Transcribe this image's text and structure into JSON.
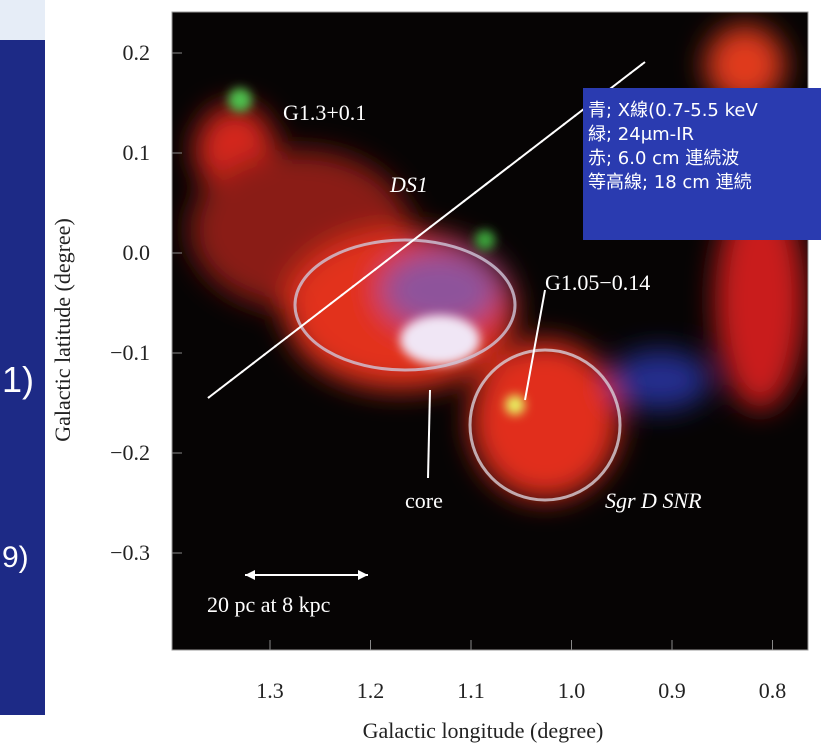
{
  "figure": {
    "y_axis_label": "Galactic latitude (degree)",
    "x_axis_label": "Galactic longitude (degree)",
    "y_tick_labels": [
      "0.2",
      "0.1",
      "0.0",
      "−0.1",
      "−0.2",
      "−0.3"
    ],
    "x_tick_labels": [
      "1.3",
      "1.2",
      "1.1",
      "1.0",
      "0.9",
      "0.8"
    ],
    "annotations": [
      "G1.3+0.1",
      "DS1",
      "G1.05−0.14",
      "core",
      "Sgr D SNR"
    ],
    "scale_bar": "20 pc at 8 kpc",
    "legend": [
      "青; X線(0.7-5.5 keV",
      "緑; 24μm-IR",
      "赤; 6.0 cm 連続波",
      "等高線; 18 cm 連続"
    ]
  },
  "sidebar": {
    "fragments": [
      "1)",
      "9)"
    ]
  }
}
